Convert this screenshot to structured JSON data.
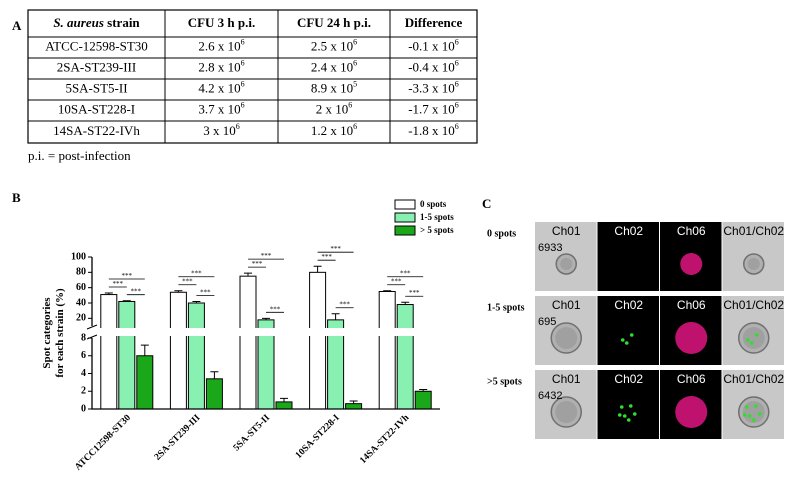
{
  "panel_labels": [
    "A",
    "B",
    "C"
  ],
  "table": {
    "header": [
      {
        "italic": "S. aureus",
        "text": " strain"
      },
      {
        "text": "CFU 3 h p.i."
      },
      {
        "text": "CFU 24 h p.i."
      },
      {
        "text": "Difference"
      }
    ],
    "rows": [
      [
        {
          "base": "ATCC-12598-ST30"
        },
        {
          "base": "2.6 x 10",
          "sup": "6"
        },
        {
          "base": "2.5 x 10",
          "sup": "6"
        },
        {
          "base": "-0.1 x 10",
          "sup": "6"
        }
      ],
      [
        {
          "base": "2SA-ST239-III"
        },
        {
          "base": "2.8 x 10",
          "sup": "6"
        },
        {
          "base": "2.4 x 10",
          "sup": "6"
        },
        {
          "base": "-0.4 x 10",
          "sup": "6"
        }
      ],
      [
        {
          "base": "5SA-ST5-II"
        },
        {
          "base": "4.2 x 10",
          "sup": "6"
        },
        {
          "base": "8.9 x 10",
          "sup": "5"
        },
        {
          "base": "-3.3 x 10",
          "sup": "6"
        }
      ],
      [
        {
          "base": "10SA-ST228-I"
        },
        {
          "base": "3.7 x 10",
          "sup": "6"
        },
        {
          "base": "2 x 10",
          "sup": "6"
        },
        {
          "base": "-1.7 x 10",
          "sup": "6"
        }
      ],
      [
        {
          "base": "14SA-ST22-IVh"
        },
        {
          "base": "3 x 10",
          "sup": "6"
        },
        {
          "base": "1.2 x 10",
          "sup": "6"
        },
        {
          "base": "-1.8 x 10",
          "sup": "6"
        }
      ]
    ],
    "note": "p.i. = post-infection"
  },
  "chart_data": {
    "type": "bar",
    "ylabel": [
      "Spot categories",
      "for each strain (%)"
    ],
    "categories": [
      "ATCC12598-ST30",
      "2SA-ST239-III",
      "5SA-ST5-II",
      "10SA-ST228-I",
      "14SA-ST22-IVh"
    ],
    "series": [
      {
        "name": "0 spots",
        "color": "#ffffff",
        "values": [
          51,
          54,
          75,
          80,
          55
        ],
        "errors": [
          2,
          2,
          4,
          8,
          1
        ]
      },
      {
        "name": "1-5 spots",
        "color": "#88f0b0",
        "values": [
          42,
          40,
          18,
          18,
          38
        ],
        "errors": [
          1,
          2,
          2,
          8,
          3
        ]
      },
      {
        "name": "> 5 spots",
        "color": "#1aa81a",
        "values": [
          6,
          3.4,
          0.8,
          0.6,
          2
        ],
        "errors": [
          1.2,
          0.8,
          0.4,
          0.3,
          0.2
        ]
      }
    ],
    "ylim": [
      0,
      8
    ],
    "yticks": [
      0,
      2,
      4,
      6,
      8
    ],
    "ylim_upper": [
      10,
      100
    ],
    "yticks_upper": [
      20,
      40,
      60,
      80,
      100
    ],
    "legend": "upper right",
    "significance": [
      {
        "label": "***",
        "category": 0,
        "from": 0,
        "to": 2
      },
      {
        "label": "***",
        "category": 0,
        "from": 0,
        "to": 1
      },
      {
        "label": "***",
        "category": 0,
        "from": 1,
        "to": 2
      },
      {
        "label": "***",
        "category": 1,
        "from": 0,
        "to": 2
      },
      {
        "label": "***",
        "category": 1,
        "from": 0,
        "to": 1
      },
      {
        "label": "***",
        "category": 1,
        "from": 1,
        "to": 2
      },
      {
        "label": "***",
        "category": 2,
        "from": 0,
        "to": 2
      },
      {
        "label": "***",
        "category": 2,
        "from": 0,
        "to": 1
      },
      {
        "label": "***",
        "category": 2,
        "from": 1,
        "to": 2
      },
      {
        "label": "***",
        "category": 3,
        "from": 0,
        "to": 2
      },
      {
        "label": "***",
        "category": 3,
        "from": 0,
        "to": 1
      },
      {
        "label": "***",
        "category": 3,
        "from": 1,
        "to": 2
      },
      {
        "label": "***",
        "category": 4,
        "from": 0,
        "to": 2
      },
      {
        "label": "***",
        "category": 4,
        "from": 0,
        "to": 1
      },
      {
        "label": "***",
        "category": 4,
        "from": 1,
        "to": 2
      }
    ]
  },
  "imaging": {
    "channels": [
      "Ch01",
      "Ch02",
      "Ch06",
      "Ch01/Ch02"
    ],
    "rows": [
      {
        "label": "0 spots",
        "id": "6933"
      },
      {
        "label": "1-5 spots",
        "id": "695"
      },
      {
        "label": ">5 spots",
        "id": "6432"
      }
    ]
  }
}
